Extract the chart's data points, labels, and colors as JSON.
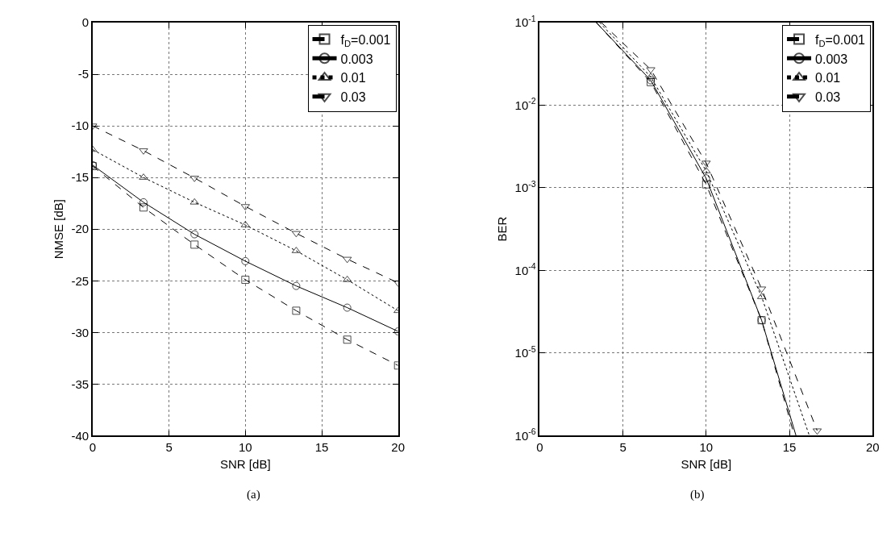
{
  "chart_data": [
    {
      "type": "line",
      "xlabel": "SNR [dB]",
      "ylabel": "NMSE [dB]",
      "annotations": [
        "(a)"
      ],
      "x": [
        0,
        3.33,
        6.67,
        10,
        13.33,
        16.67,
        20
      ],
      "xlim": [
        0,
        20
      ],
      "xticks": [
        0,
        5,
        10,
        15,
        20
      ],
      "ylim": [
        -40,
        0
      ],
      "yticks": [
        -40,
        -35,
        -30,
        -25,
        -20,
        -15,
        -10,
        -5,
        0
      ],
      "grid": true,
      "legend": "top right",
      "series": [
        {
          "name": "f$_{D}$=0.001",
          "color": "#000000",
          "marker": "square",
          "line_style": "dashed",
          "values": [
            -13.9,
            -17.9,
            -21.5,
            -24.9,
            -27.9,
            -30.7,
            -33.2
          ]
        },
        {
          "name": "0.003",
          "color": "#000000",
          "marker": "circle",
          "line_style": "solid",
          "values": [
            -13.8,
            -17.4,
            -20.5,
            -23.1,
            -25.5,
            -27.6,
            -29.9
          ]
        },
        {
          "name": "0.01",
          "color": "#000000",
          "marker": "triangle",
          "line_style": "dotted",
          "values": [
            -12.3,
            -15,
            -17.4,
            -19.6,
            -22.1,
            -24.9,
            -27.9
          ]
        },
        {
          "name": "0.03",
          "color": "#000000",
          "marker": "triangle-down",
          "line_style": "dashed",
          "values": [
            -10,
            -12.4,
            -15.05,
            -17.8,
            -20.4,
            -22.9,
            -25.2
          ]
        }
      ]
    },
    {
      "type": "line",
      "xlabel": "SNR [dB]",
      "ylabel": "BER",
      "annotations": [
        "(b)"
      ],
      "log": "y",
      "xlim": [
        0,
        20
      ],
      "xticks": [
        0,
        5,
        10,
        15,
        20
      ],
      "ylim": [
        1e-06,
        0.1
      ],
      "yticks": [
        {
          "value": 1e-06,
          "label": "10$^{-6}$"
        },
        {
          "value": 1e-05,
          "label": "10$^{-5}$"
        },
        {
          "value": 0.0001,
          "label": "10$^{-4}$"
        },
        {
          "value": 0.001,
          "label": "10$^{-3}$"
        },
        {
          "value": 0.01,
          "label": "10$^{-2}$"
        },
        {
          "value": 0.1,
          "label": "10$^{-1}$"
        }
      ],
      "grid": true,
      "legend": "top right",
      "series": [
        {
          "name": "f$_{D}$=0.001",
          "color": "#000000",
          "marker": "square",
          "line_style": "dashed",
          "x": [
            3.4,
            6.67,
            10,
            13.33,
            15.3
          ],
          "values": [
            0.1,
            0.019,
            0.0011,
            2.5e-05,
            1e-06
          ]
        },
        {
          "name": "0.003",
          "color": "#000000",
          "marker": "circle",
          "line_style": "solid",
          "x": [
            3.4,
            6.67,
            10,
            13.33,
            15.4
          ],
          "values": [
            0.1,
            0.02,
            0.0013,
            2.5e-05,
            1e-06
          ]
        },
        {
          "name": "0.01",
          "color": "#000000",
          "marker": "triangle",
          "line_style": "dotted",
          "x": [
            3.6,
            6.67,
            10,
            13.33,
            16.2
          ],
          "values": [
            0.1,
            0.022,
            0.0016,
            4.8e-05,
            1e-06
          ]
        },
        {
          "name": "0.03",
          "color": "#000000",
          "marker": "triangle-down",
          "line_style": "dashed",
          "x": [
            3.7,
            6.67,
            10,
            13.33,
            16.67
          ],
          "values": [
            0.1,
            0.027,
            0.002,
            6e-05,
            1.15e-06
          ]
        }
      ]
    }
  ]
}
